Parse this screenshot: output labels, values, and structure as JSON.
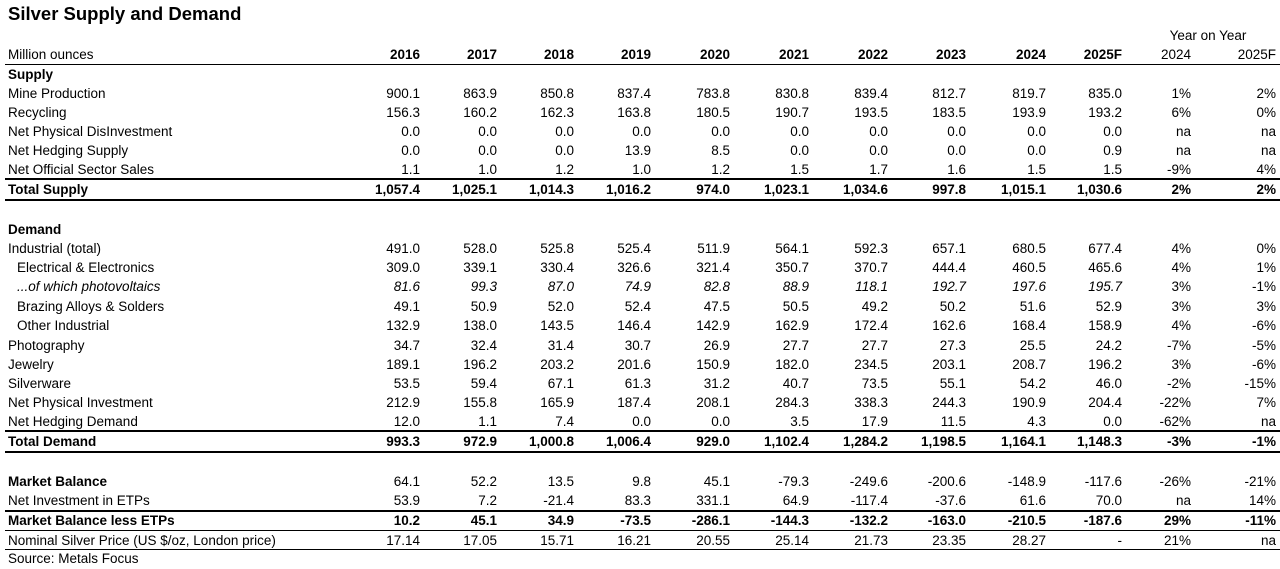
{
  "title": "Silver Supply and Demand",
  "header": {
    "unit_label": "Million ounces",
    "yoy_label": "Year on Year",
    "years": [
      "2016",
      "2017",
      "2018",
      "2019",
      "2020",
      "2021",
      "2022",
      "2023",
      "2024",
      "2025F"
    ],
    "yoy_years": [
      "2024",
      "2025F"
    ]
  },
  "rows": [
    {
      "label": "Supply",
      "style": "section",
      "values": []
    },
    {
      "label": "Mine Production",
      "values": [
        "900.1",
        "863.9",
        "850.8",
        "837.4",
        "783.8",
        "830.8",
        "839.4",
        "812.7",
        "819.7",
        "835.0"
      ],
      "yoy": [
        "1%",
        "2%"
      ]
    },
    {
      "label": "Recycling",
      "values": [
        "156.3",
        "160.2",
        "162.3",
        "163.8",
        "180.5",
        "190.7",
        "193.5",
        "183.5",
        "193.9",
        "193.2"
      ],
      "yoy": [
        "6%",
        "0%"
      ]
    },
    {
      "label": "Net Physical DisInvestment",
      "values": [
        "0.0",
        "0.0",
        "0.0",
        "0.0",
        "0.0",
        "0.0",
        "0.0",
        "0.0",
        "0.0",
        "0.0"
      ],
      "yoy": [
        "na",
        "na"
      ]
    },
    {
      "label": "Net Hedging Supply",
      "values": [
        "0.0",
        "0.0",
        "0.0",
        "13.9",
        "8.5",
        "0.0",
        "0.0",
        "0.0",
        "0.0",
        "0.9"
      ],
      "yoy": [
        "na",
        "na"
      ]
    },
    {
      "label": "Net Official Sector Sales",
      "values": [
        "1.1",
        "1.0",
        "1.2",
        "1.0",
        "1.2",
        "1.5",
        "1.7",
        "1.6",
        "1.5",
        "1.5"
      ],
      "yoy": [
        "-9%",
        "4%"
      ]
    },
    {
      "label": "Total Supply",
      "style": "total",
      "values": [
        "1,057.4",
        "1,025.1",
        "1,014.3",
        "1,016.2",
        "974.0",
        "1,023.1",
        "1,034.6",
        "997.8",
        "1,015.1",
        "1,030.6"
      ],
      "yoy": [
        "2%",
        "2%"
      ]
    },
    {
      "label": "",
      "style": "blank",
      "values": []
    },
    {
      "label": "Demand",
      "style": "section",
      "values": []
    },
    {
      "label": "Industrial (total)",
      "values": [
        "491.0",
        "528.0",
        "525.8",
        "525.4",
        "511.9",
        "564.1",
        "592.3",
        "657.1",
        "680.5",
        "677.4"
      ],
      "yoy": [
        "4%",
        "0%"
      ]
    },
    {
      "label": "Electrical & Electronics",
      "style": "indent",
      "values": [
        "309.0",
        "339.1",
        "330.4",
        "326.6",
        "321.4",
        "350.7",
        "370.7",
        "444.4",
        "460.5",
        "465.6"
      ],
      "yoy": [
        "4%",
        "1%"
      ]
    },
    {
      "label": "...of which photovoltaics",
      "style": "italic",
      "values": [
        "81.6",
        "99.3",
        "87.0",
        "74.9",
        "82.8",
        "88.9",
        "118.1",
        "192.7",
        "197.6",
        "195.7"
      ],
      "yoy": [
        "3%",
        "-1%"
      ]
    },
    {
      "label": "Brazing Alloys & Solders",
      "style": "indent",
      "values": [
        "49.1",
        "50.9",
        "52.0",
        "52.4",
        "47.5",
        "50.5",
        "49.2",
        "50.2",
        "51.6",
        "52.9"
      ],
      "yoy": [
        "3%",
        "3%"
      ]
    },
    {
      "label": "Other Industrial",
      "style": "indent",
      "values": [
        "132.9",
        "138.0",
        "143.5",
        "146.4",
        "142.9",
        "162.9",
        "172.4",
        "162.6",
        "168.4",
        "158.9"
      ],
      "yoy": [
        "4%",
        "-6%"
      ]
    },
    {
      "label": "Photography",
      "values": [
        "34.7",
        "32.4",
        "31.4",
        "30.7",
        "26.9",
        "27.7",
        "27.7",
        "27.3",
        "25.5",
        "24.2"
      ],
      "yoy": [
        "-7%",
        "-5%"
      ]
    },
    {
      "label": "Jewelry",
      "values": [
        "189.1",
        "196.2",
        "203.2",
        "201.6",
        "150.9",
        "182.0",
        "234.5",
        "203.1",
        "208.7",
        "196.2"
      ],
      "yoy": [
        "3%",
        "-6%"
      ]
    },
    {
      "label": "Silverware",
      "values": [
        "53.5",
        "59.4",
        "67.1",
        "61.3",
        "31.2",
        "40.7",
        "73.5",
        "55.1",
        "54.2",
        "46.0"
      ],
      "yoy": [
        "-2%",
        "-15%"
      ]
    },
    {
      "label": "Net Physical Investment",
      "values": [
        "212.9",
        "155.8",
        "165.9",
        "187.4",
        "208.1",
        "284.3",
        "338.3",
        "244.3",
        "190.9",
        "204.4"
      ],
      "yoy": [
        "-22%",
        "7%"
      ]
    },
    {
      "label": "Net Hedging Demand",
      "values": [
        "12.0",
        "1.1",
        "7.4",
        "0.0",
        "0.0",
        "3.5",
        "17.9",
        "11.5",
        "4.3",
        "0.0"
      ],
      "yoy": [
        "-62%",
        "na"
      ]
    },
    {
      "label": "Total Demand",
      "style": "total",
      "values": [
        "993.3",
        "972.9",
        "1,000.8",
        "1,006.4",
        "929.0",
        "1,102.4",
        "1,284.2",
        "1,198.5",
        "1,164.1",
        "1,148.3"
      ],
      "yoy": [
        "-3%",
        "-1%"
      ]
    },
    {
      "label": "",
      "style": "blank",
      "values": []
    },
    {
      "label": "Market Balance",
      "style": "boldlabel",
      "values": [
        "64.1",
        "52.2",
        "13.5",
        "9.8",
        "45.1",
        "-79.3",
        "-249.6",
        "-200.6",
        "-148.9",
        "-117.6"
      ],
      "yoy": [
        "-26%",
        "-21%"
      ]
    },
    {
      "label": "Net Investment in ETPs",
      "values": [
        "53.9",
        "7.2",
        "-21.4",
        "83.3",
        "331.1",
        "64.9",
        "-117.4",
        "-37.6",
        "61.6",
        "70.0"
      ],
      "yoy": [
        "na",
        "14%"
      ]
    },
    {
      "label": "Market Balance less ETPs",
      "style": "bold",
      "values": [
        "10.2",
        "45.1",
        "34.9",
        "-73.5",
        "-286.1",
        "-144.3",
        "-132.2",
        "-163.0",
        "-210.5",
        "-187.6"
      ],
      "yoy": [
        "29%",
        "-11%"
      ]
    },
    {
      "label": "Nominal Silver Price (US $/oz, London price)",
      "values": [
        "17.14",
        "17.05",
        "15.71",
        "16.21",
        "20.55",
        "25.14",
        "21.73",
        "23.35",
        "28.27",
        "-"
      ],
      "yoy": [
        "21%",
        "na"
      ]
    }
  ],
  "source": "Source: Metals Focus"
}
